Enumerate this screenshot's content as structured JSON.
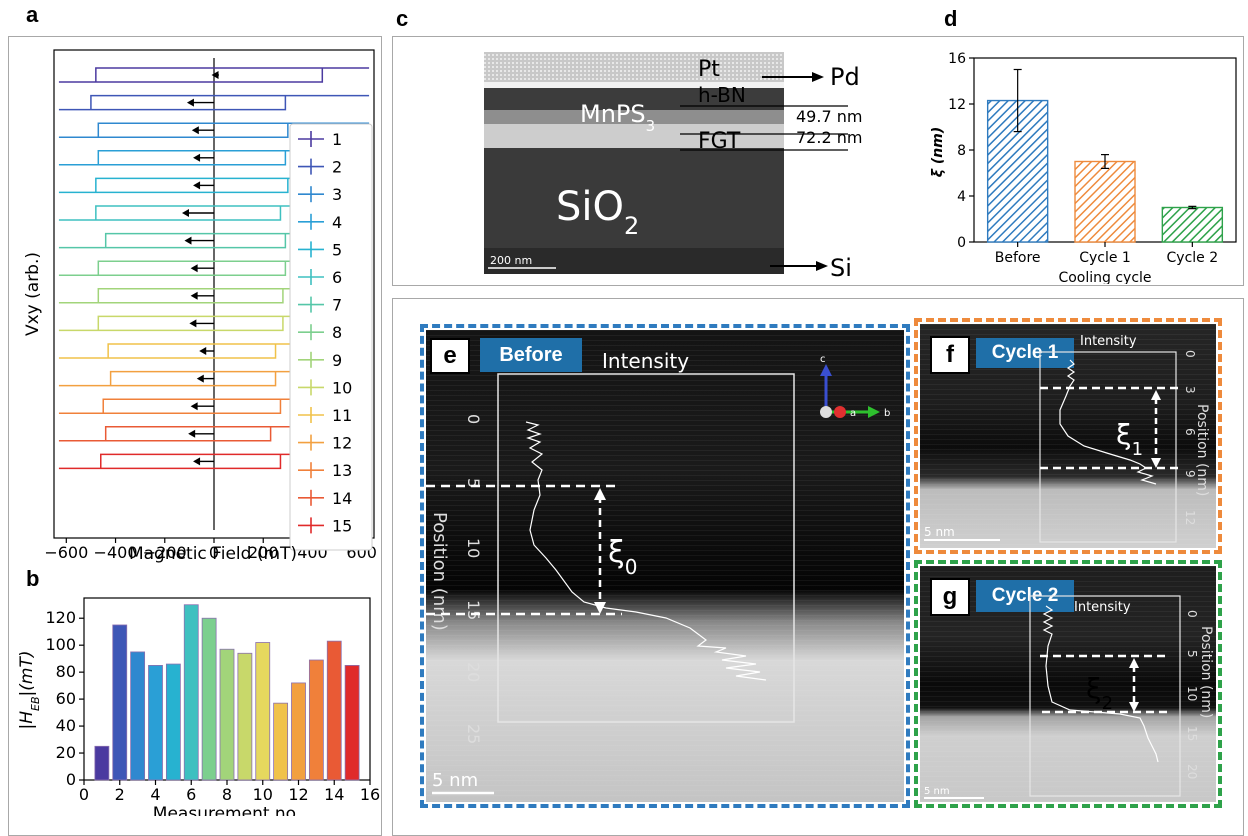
{
  "panels": {
    "a": "a",
    "b": "b",
    "c": "c",
    "d": "d",
    "e": "e",
    "f": "f",
    "g": "g"
  },
  "chart_data": [
    {
      "id": "a",
      "type": "line",
      "xlabel": "Magnetic Field (mT)",
      "ylabel": "Vxy (arb.)",
      "xlim": [
        -650,
        650
      ],
      "x_ticks": [
        "−600",
        "−400",
        "−200",
        "0",
        "200",
        "400",
        "600"
      ],
      "legend_position": "right",
      "series": [
        {
          "name": "1",
          "color": "#4b3aa0",
          "left": -480,
          "right": 440,
          "arrow_start": 20,
          "arrow_end": -10
        },
        {
          "name": "2",
          "color": "#3e56b6",
          "left": -500,
          "right": 290,
          "arrow_start": 0,
          "arrow_end": -110
        },
        {
          "name": "3",
          "color": "#2f88cf",
          "left": -470,
          "right": 300,
          "arrow_start": 0,
          "arrow_end": -90
        },
        {
          "name": "4",
          "color": "#2a9fd6",
          "left": -470,
          "right": 290,
          "arrow_start": 0,
          "arrow_end": -85
        },
        {
          "name": "5",
          "color": "#27b2d0",
          "left": -480,
          "right": 300,
          "arrow_start": 0,
          "arrow_end": -85
        },
        {
          "name": "6",
          "color": "#3ec0c0",
          "left": -480,
          "right": 270,
          "arrow_start": 0,
          "arrow_end": -130
        },
        {
          "name": "7",
          "color": "#55c6a8",
          "left": -440,
          "right": 290,
          "arrow_start": 0,
          "arrow_end": -120
        },
        {
          "name": "8",
          "color": "#7ccf8e",
          "left": -470,
          "right": 290,
          "arrow_start": 0,
          "arrow_end": -95
        },
        {
          "name": "9",
          "color": "#a2d47a",
          "left": -470,
          "right": 280,
          "arrow_start": 0,
          "arrow_end": -95
        },
        {
          "name": "10",
          "color": "#c8d86a",
          "left": -470,
          "right": 280,
          "arrow_start": 0,
          "arrow_end": -100
        },
        {
          "name": "11",
          "color": "#f0c24a",
          "left": -430,
          "right": 250,
          "arrow_start": 0,
          "arrow_end": -60
        },
        {
          "name": "12",
          "color": "#f2a040",
          "left": -420,
          "right": 250,
          "arrow_start": 0,
          "arrow_end": -70
        },
        {
          "name": "13",
          "color": "#f0803a",
          "left": -450,
          "right": 270,
          "arrow_start": 0,
          "arrow_end": -95
        },
        {
          "name": "14",
          "color": "#e95a35",
          "left": -440,
          "right": 230,
          "arrow_start": 0,
          "arrow_end": -105
        },
        {
          "name": "15",
          "color": "#e02a2a",
          "left": -460,
          "right": 270,
          "arrow_start": 0,
          "arrow_end": -85
        }
      ]
    },
    {
      "id": "b",
      "type": "bar",
      "xlabel": "Measurement no.",
      "ylabel": "|H_EB|(mT)",
      "xlim": [
        0,
        16
      ],
      "ylim": [
        0,
        135
      ],
      "x_ticks": [
        0,
        2,
        4,
        6,
        8,
        10,
        12,
        14,
        16
      ],
      "y_ticks": [
        0,
        20,
        40,
        60,
        80,
        100,
        120
      ],
      "x": [
        1,
        2,
        3,
        4,
        5,
        6,
        7,
        8,
        9,
        10,
        11,
        12,
        13,
        14,
        15
      ],
      "values": [
        25,
        115,
        95,
        85,
        86,
        130,
        120,
        97,
        94,
        102,
        57,
        72,
        89,
        103,
        85
      ],
      "colors": [
        "#4b3aa0",
        "#3e56b6",
        "#2f88cf",
        "#2a9fd6",
        "#27b2d0",
        "#3ec0c0",
        "#7ccf8e",
        "#a2d47a",
        "#c8d86a",
        "#e6d85e",
        "#f0c24a",
        "#f2a040",
        "#f0803a",
        "#e95a35",
        "#e02a2a"
      ]
    },
    {
      "id": "d",
      "type": "bar",
      "xlabel": "Cooling cycle",
      "ylabel": "ξ (nm)",
      "ylim": [
        0,
        16
      ],
      "y_ticks": [
        0,
        4,
        8,
        12,
        16
      ],
      "categories": [
        "Before",
        "Cycle 1",
        "Cycle 2"
      ],
      "values": [
        12.3,
        7.0,
        3.0
      ],
      "errors": [
        2.7,
        0.6,
        0.1
      ],
      "colors": [
        "#2f7bbf",
        "#ee8a3c",
        "#2ea24a"
      ]
    }
  ],
  "panel_c": {
    "labels": {
      "pt": "Pt",
      "pd": "Pd",
      "hbn": "h-BN",
      "mnps": "MnPS",
      "mnps_sub": "3",
      "fgt": "FGT",
      "sio": "SiO",
      "sio_sub": "2",
      "si": "Si"
    },
    "thickness": {
      "t1": "49.7 nm",
      "t2": "72.2 nm"
    },
    "scale_bar": "200 nm"
  },
  "panel_e": {
    "tag": "Before",
    "intensity": "Intensity",
    "position_label": "Position (nm)",
    "xi": "ξ",
    "xi_sub": "0",
    "ticks": [
      "0",
      "5",
      "10",
      "15",
      "20",
      "25"
    ],
    "axes": {
      "c": "c",
      "a": "a",
      "b": "b"
    },
    "scale_bar": "5 nm"
  },
  "panel_f": {
    "tag": "Cycle 1",
    "intensity": "Intensity",
    "position_label": "Position (nm)",
    "xi": "ξ",
    "xi_sub": "1",
    "ticks": [
      "0",
      "3",
      "6",
      "9",
      "12"
    ],
    "scale_bar": "5 nm"
  },
  "panel_g": {
    "tag": "Cycle 2",
    "intensity": "Intensity",
    "position_label": "Position (nm)",
    "xi": "ξ",
    "xi_sub": "2",
    "ticks": [
      "0",
      "5",
      "10",
      "15",
      "20"
    ],
    "scale_bar": "5 nm"
  },
  "colors": {
    "blue_dash": "#2f7bbf",
    "orange_dash": "#ee8a3c",
    "green_dash": "#2ea24a",
    "tag_blue": "#1f6fa8"
  }
}
